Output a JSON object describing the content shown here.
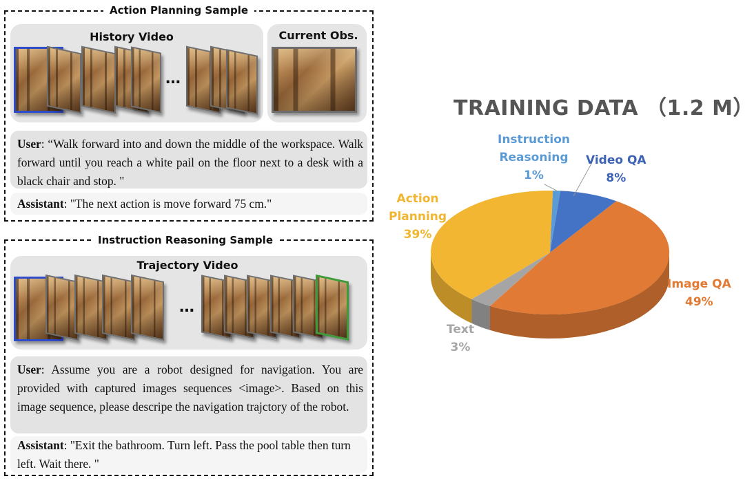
{
  "action_planning": {
    "title": "Action Planning Sample",
    "history_label": "History Video",
    "current_label": "Current Obs.",
    "ellipsis": "…",
    "user_role": "User",
    "user_text": ": “Walk forward into and down the middle of the workspace. Walk forward until you reach a white pail on the floor next to a desk with a black chair and stop. \"",
    "assistant_role": "Assistant",
    "assistant_text": ": \"The next action is move forward 75 cm.\""
  },
  "instruction_reasoning": {
    "title": "Instruction Reasoning Sample",
    "trajectory_label": "Trajectory Video",
    "ellipsis": "…",
    "user_role": "User",
    "user_text": ":  Assume you are a robot designed for navigation. You are provided with captured images sequences <image>. Based on this image sequence, please descripe the navigation trajctory of the robot.",
    "assistant_role": "Assistant",
    "assistant_text": ": \"Exit the bathroom. Turn left. Pass the pool table then turn left. Wait there. \""
  },
  "chart_data": {
    "type": "pie",
    "title": "TRAINING DATA （1.2 M）",
    "slices": [
      {
        "label": "Video QA",
        "value": 8,
        "pct_label": "8%",
        "color": "#4472c4"
      },
      {
        "label": "Image QA",
        "value": 49,
        "pct_label": "49%",
        "color": "#e07a34"
      },
      {
        "label": "Text",
        "value": 3,
        "pct_label": "3%",
        "color": "#a5a5a5"
      },
      {
        "label": "Action Planning",
        "label_lines": [
          "Action",
          "Planning"
        ],
        "value": 39,
        "pct_label": "39%",
        "color": "#f2b632"
      },
      {
        "label": "Instruction Reasoning",
        "label_lines": [
          "Instruction",
          "Reasoning"
        ],
        "value": 1,
        "pct_label": "1%",
        "color": "#5b9bd5"
      }
    ]
  }
}
